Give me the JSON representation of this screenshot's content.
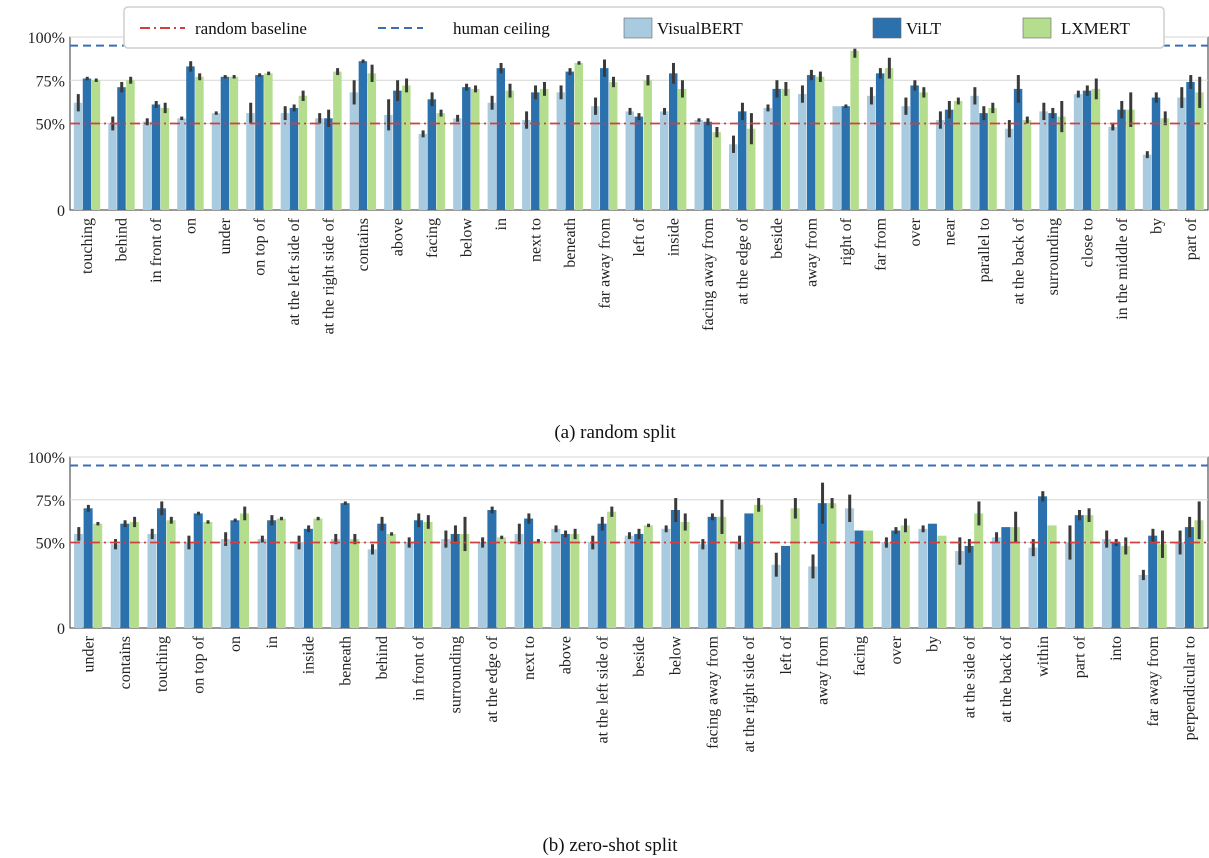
{
  "legend": [
    {
      "key": "random",
      "label": "random baseline",
      "style": "dashdot",
      "color": "#d04040"
    },
    {
      "key": "human",
      "label": "human ceiling",
      "style": "dashed",
      "color": "#3a6fb4"
    },
    {
      "key": "VisualBERT",
      "label": "VisualBERT",
      "style": "patch",
      "color": "#a9cbe0"
    },
    {
      "key": "ViLT",
      "label": "ViLT",
      "style": "patch",
      "color": "#2a71ad"
    },
    {
      "key": "LXMERT",
      "label": "LXMERT",
      "style": "patch",
      "color": "#b4dd8e"
    }
  ],
  "colors": {
    "VisualBERT": "#a9cbe0",
    "ViLT": "#2a71ad",
    "LXMERT": "#b4dd8e",
    "random": "#d04040",
    "human": "#3a6fb4",
    "errorbar": "#3a3a3a",
    "grid": "#d6d6d6",
    "axis": "#333333"
  },
  "chart_data": [
    {
      "type": "bar",
      "caption": "(a) random split",
      "ylim": [
        0,
        100
      ],
      "yticks": [
        {
          "value": 0,
          "label": "0"
        },
        {
          "value": 50,
          "label": "50%"
        },
        {
          "value": 75,
          "label": "75%"
        },
        {
          "value": 100,
          "label": "100%"
        }
      ],
      "grid": true,
      "reference_lines": {
        "random baseline": 50,
        "human ceiling": 95
      },
      "categories": [
        "touching",
        "behind",
        "in front of",
        "on",
        "under",
        "on top of",
        "at the left side of",
        "at the right side of",
        "contains",
        "above",
        "facing",
        "below",
        "in",
        "next to",
        "beneath",
        "far away from",
        "left of",
        "inside",
        "facing away from",
        "at the edge of",
        "beside",
        "away from",
        "right of",
        "far from",
        "over",
        "near",
        "parallel to",
        "at the back of",
        "surrounding",
        "close to",
        "in the middle of",
        "by",
        "part of"
      ],
      "series": [
        {
          "name": "VisualBERT",
          "values": [
            62,
            50,
            51,
            53,
            56,
            56,
            56,
            53,
            68,
            55,
            44,
            53,
            62,
            52,
            68,
            60,
            57,
            57,
            52,
            38,
            59,
            67,
            60,
            66,
            60,
            52,
            66,
            47,
            57,
            67,
            48,
            32,
            65
          ],
          "errors": [
            5,
            4,
            2,
            1,
            1,
            6,
            4,
            3,
            7,
            9,
            2,
            2,
            4,
            5,
            4,
            5,
            2,
            2,
            1,
            5,
            2,
            5,
            0,
            5,
            5,
            5,
            5,
            5,
            5,
            2,
            2,
            2,
            6
          ]
        },
        {
          "name": "ViLT",
          "values": [
            76,
            71,
            61,
            83,
            77,
            78,
            59,
            53,
            86,
            69,
            64,
            71,
            82,
            68,
            80,
            82,
            54,
            79,
            51,
            57,
            70,
            78,
            60,
            79,
            72,
            58,
            56,
            70,
            56,
            69,
            58,
            65,
            74
          ],
          "errors": [
            1,
            3,
            2,
            3,
            1,
            1,
            2,
            5,
            1,
            6,
            4,
            2,
            3,
            4,
            2,
            5,
            2,
            6,
            2,
            5,
            5,
            3,
            1,
            3,
            3,
            5,
            4,
            8,
            3,
            3,
            5,
            3,
            4
          ]
        },
        {
          "name": "LXMERT",
          "values": [
            75,
            75,
            59,
            77,
            77,
            79,
            66,
            80,
            79,
            72,
            56,
            70,
            69,
            70,
            85,
            74,
            75,
            70,
            45,
            47,
            70,
            77,
            92,
            82,
            68,
            63,
            59,
            52,
            54,
            70,
            58,
            53,
            68
          ],
          "errors": [
            1,
            2,
            3,
            2,
            1,
            1,
            3,
            2,
            5,
            4,
            2,
            2,
            4,
            4,
            1,
            3,
            3,
            5,
            3,
            9,
            4,
            3,
            4,
            6,
            3,
            2,
            3,
            2,
            9,
            6,
            10,
            4,
            9
          ]
        }
      ]
    },
    {
      "type": "bar",
      "caption": "(b) zero-shot split",
      "ylim": [
        0,
        100
      ],
      "yticks": [
        {
          "value": 0,
          "label": "0"
        },
        {
          "value": 50,
          "label": "50%"
        },
        {
          "value": 75,
          "label": "75%"
        },
        {
          "value": 100,
          "label": "100%"
        }
      ],
      "grid": true,
      "reference_lines": {
        "random baseline": 50,
        "human ceiling": 95
      },
      "categories": [
        "under",
        "contains",
        "touching",
        "on top of",
        "on",
        "in",
        "inside",
        "beneath",
        "behind",
        "in front of",
        "surrounding",
        "at the edge of",
        "next to",
        "above",
        "at the left side of",
        "beside",
        "below",
        "facing away from",
        "at the right side of",
        "left of",
        "away from",
        "facing",
        "over",
        "by",
        "at the side of",
        "at the back of",
        "within",
        "part of",
        "into",
        "far away from",
        "perpendicular to"
      ],
      "series": [
        {
          "name": "VisualBERT",
          "values": [
            55,
            49,
            55,
            50,
            52,
            52,
            50,
            52,
            46,
            50,
            52,
            50,
            55,
            58,
            50,
            54,
            58,
            49,
            50,
            37,
            36,
            70,
            50,
            58,
            45,
            53,
            47,
            50,
            52,
            31,
            50
          ],
          "errors": [
            4,
            3,
            3,
            4,
            4,
            2,
            4,
            3,
            3,
            3,
            5,
            3,
            6,
            2,
            4,
            2,
            2,
            3,
            4,
            7,
            7,
            8,
            3,
            2,
            8,
            3,
            5,
            10,
            5,
            3,
            7
          ]
        },
        {
          "name": "ViLT",
          "values": [
            70,
            61,
            70,
            67,
            63,
            63,
            58,
            73,
            61,
            63,
            55,
            69,
            64,
            55,
            61,
            55,
            69,
            65,
            67,
            48,
            73,
            57,
            57,
            61,
            48,
            59,
            77,
            66,
            50,
            54,
            59
          ]
        },
        {
          "name": "LXMERT",
          "values": [
            61,
            62,
            63,
            62,
            67,
            64,
            64,
            52,
            55,
            62,
            55,
            53,
            51,
            55,
            68,
            60,
            62,
            65,
            72,
            70,
            73,
            57,
            60,
            54,
            67,
            59,
            60,
            66,
            48,
            49,
            63
          ],
          "errors": [
            1,
            3,
            2,
            1,
            4,
            1,
            1,
            3,
            1,
            4,
            10,
            1,
            1,
            3,
            3,
            1,
            5,
            10,
            4,
            6,
            3,
            0,
            4,
            0,
            7,
            9,
            0,
            4,
            5,
            8,
            11
          ]
        }
      ],
      "vilt_errors": [
        2,
        2,
        4,
        1,
        1,
        3,
        2,
        1,
        4,
        4,
        5,
        2,
        3,
        2,
        4,
        3,
        7,
        2,
        0,
        0,
        12,
        0,
        2,
        0,
        4,
        0,
        3,
        3,
        2,
        4,
        6
      ]
    }
  ]
}
